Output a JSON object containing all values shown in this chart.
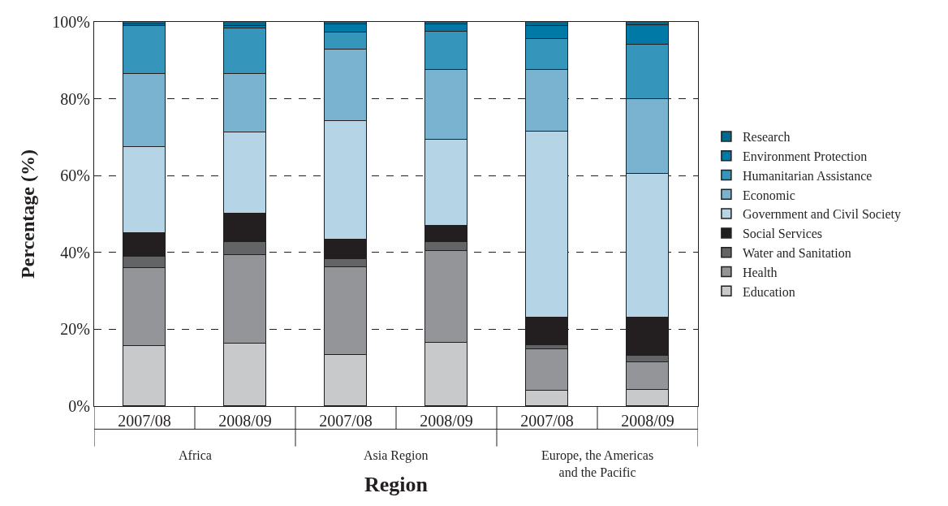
{
  "chart_data": {
    "type": "bar",
    "stacked": true,
    "xlabel": "Region",
    "ylabel": "Percentage (%)",
    "categories": [
      "2007/08",
      "2008/09",
      "2007/08",
      "2008/09",
      "2007/08",
      "2008/09"
    ],
    "annotations": [
      "Africa",
      "Asia Region",
      "Europe, the Americas and the Pacific"
    ],
    "series": [
      {
        "name": "Education",
        "color": "#c8c9cb",
        "values": [
          15.7,
          16.2,
          13.4,
          16.5,
          4.0,
          4.3
        ]
      },
      {
        "name": "Health",
        "color": "#939598",
        "values": [
          20.2,
          23.2,
          22.7,
          23.8,
          10.8,
          7.2
        ]
      },
      {
        "name": "Water and Sanitation",
        "color": "#636466",
        "values": [
          2.9,
          3.3,
          2.1,
          2.4,
          1.0,
          1.6
        ]
      },
      {
        "name": "Social Services",
        "color": "#231f20",
        "values": [
          6.3,
          7.4,
          5.2,
          4.3,
          7.2,
          9.9
        ]
      },
      {
        "name": "Government and Civil Society",
        "color": "#b5d5e6",
        "values": [
          22.3,
          21.1,
          30.9,
          22.3,
          48.5,
          37.5
        ]
      },
      {
        "name": "Economic",
        "color": "#7ab3d0",
        "values": [
          19.0,
          15.2,
          18.5,
          18.3,
          16.1,
          19.4
        ]
      },
      {
        "name": "Humanitarian Assistance",
        "color": "#3595bb",
        "values": [
          12.5,
          11.9,
          4.4,
          9.9,
          8.0,
          14.1
        ]
      },
      {
        "name": "Environment Protection",
        "color": "#0079a6",
        "values": [
          0.4,
          0.7,
          2.1,
          1.9,
          3.3,
          5.2
        ]
      },
      {
        "name": "Research",
        "color": "#006990",
        "values": [
          0.7,
          1.0,
          0.7,
          0.6,
          1.1,
          0.8
        ]
      }
    ],
    "ylim": [
      0,
      100
    ],
    "yticks": [
      {
        "value": 0,
        "label": "0%"
      },
      {
        "value": 20,
        "label": "20%"
      },
      {
        "value": 40,
        "label": "40%"
      },
      {
        "value": 60,
        "label": "60%"
      },
      {
        "value": 80,
        "label": "80%"
      },
      {
        "value": 100,
        "label": "100%"
      }
    ],
    "grid": "y",
    "legend": "right"
  }
}
